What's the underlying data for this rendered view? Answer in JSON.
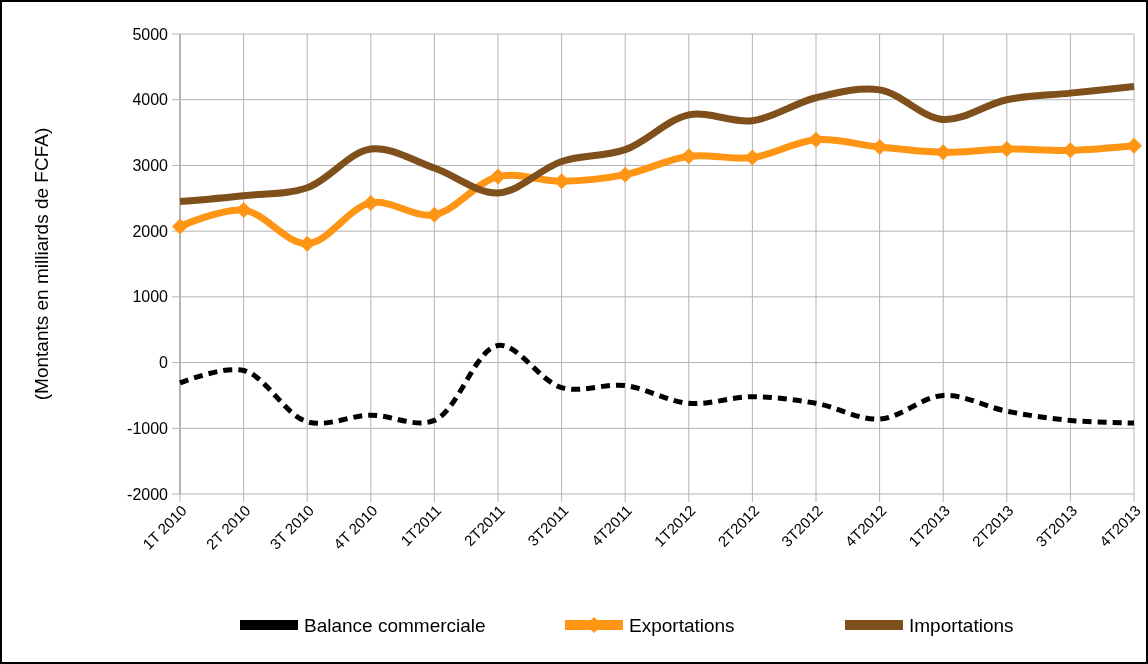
{
  "chart_data": {
    "type": "line",
    "ylabel": "(Montants en milliards de FCFA)",
    "categories": [
      "1T 2010",
      "2T 2010",
      "3T 2010",
      "4T 2010",
      "1T2011",
      "2T2011",
      "3T2011",
      "4T2011",
      "1T2012",
      "2T2012",
      "3T2012",
      "4T2012",
      "1T2013",
      "2T2013",
      "3T2013",
      "4T2013"
    ],
    "series": [
      {
        "name": "Balance commerciale",
        "color": "#000000",
        "line_style": "dashed",
        "marker": "none",
        "values": [
          -310,
          -120,
          -900,
          -800,
          -880,
          260,
          -380,
          -350,
          -620,
          -520,
          -620,
          -860,
          -500,
          -740,
          -880,
          -920
        ]
      },
      {
        "name": "Exportations",
        "color": "#ff9515",
        "line_style": "solid",
        "marker": "diamond",
        "values": [
          2070,
          2320,
          1810,
          2430,
          2250,
          2830,
          2760,
          2860,
          3140,
          3120,
          3390,
          3280,
          3200,
          3250,
          3230,
          3300
        ]
      },
      {
        "name": "Importations",
        "color": "#7f4f1c",
        "line_style": "solid",
        "marker": "none",
        "values": [
          2450,
          2540,
          2660,
          3250,
          2960,
          2580,
          3060,
          3240,
          3770,
          3680,
          4030,
          4150,
          3700,
          4000,
          4100,
          4200
        ]
      }
    ],
    "ylim": [
      -2000,
      5000
    ],
    "yticks": [
      -2000,
      -1000,
      0,
      1000,
      2000,
      3000,
      4000,
      5000
    ],
    "grid": true,
    "legend": "bottom"
  }
}
